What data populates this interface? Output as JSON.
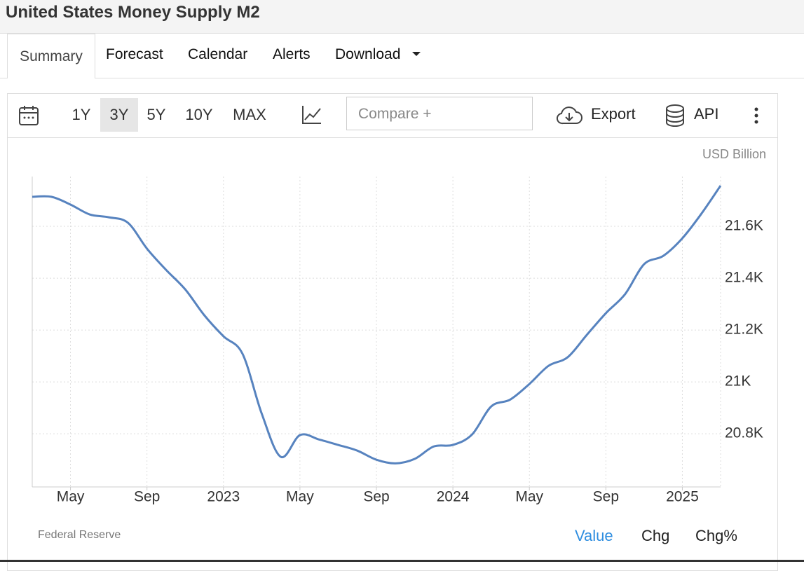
{
  "header": {
    "title": "United States Money Supply M2"
  },
  "tabs": [
    "Summary",
    "Forecast",
    "Calendar",
    "Alerts",
    "Download"
  ],
  "toolbar": {
    "ranges": [
      "1Y",
      "3Y",
      "5Y",
      "10Y",
      "MAX"
    ],
    "compare": "Compare +",
    "export": "Export",
    "api": "API"
  },
  "chart_data": {
    "type": "line",
    "unit": "USD Billion",
    "source": "Federal Reserve",
    "color": "#5783bf",
    "grid": true,
    "x": [
      "2022-03",
      "2022-04",
      "2022-05",
      "2022-06",
      "2022-07",
      "2022-08",
      "2022-09",
      "2022-10",
      "2022-11",
      "2022-12",
      "2023-01",
      "2023-02",
      "2023-03",
      "2023-04",
      "2023-05",
      "2023-06",
      "2023-07",
      "2023-08",
      "2023-09",
      "2023-10",
      "2023-11",
      "2023-12",
      "2024-01",
      "2024-02",
      "2024-03",
      "2024-04",
      "2024-05",
      "2024-06",
      "2024-07",
      "2024-08",
      "2024-09",
      "2024-10",
      "2024-11",
      "2024-12",
      "2025-01",
      "2025-02",
      "2025-03"
    ],
    "values": [
      21714,
      21714,
      21684,
      21646,
      21635,
      21614,
      21514,
      21432,
      21357,
      21257,
      21176,
      21108,
      20878,
      20711,
      20795,
      20778,
      20757,
      20735,
      20700,
      20686,
      20703,
      20751,
      20757,
      20797,
      20905,
      20932,
      20992,
      21062,
      21095,
      21181,
      21265,
      21338,
      21454,
      21486,
      21554,
      21649,
      21757
    ],
    "xlim": [
      "2022-03",
      "2025-03"
    ],
    "xticks": [
      {
        "value": "2022-05",
        "label": "May"
      },
      {
        "value": "2022-09",
        "label": "Sep"
      },
      {
        "value": "2023-01",
        "label": "2023"
      },
      {
        "value": "2023-05",
        "label": "May"
      },
      {
        "value": "2023-09",
        "label": "Sep"
      },
      {
        "value": "2024-01",
        "label": "2024"
      },
      {
        "value": "2024-05",
        "label": "May"
      },
      {
        "value": "2024-09",
        "label": "Sep"
      },
      {
        "value": "2025-01",
        "label": "2025"
      }
    ],
    "ylim": [
      20595,
      21792
    ],
    "yticks": [
      {
        "value": 20800,
        "label": "20.8K"
      },
      {
        "value": 21000,
        "label": "21K"
      },
      {
        "value": 21200,
        "label": "21.2K"
      },
      {
        "value": 21400,
        "label": "21.4K"
      },
      {
        "value": 21600,
        "label": "21.6K"
      }
    ]
  },
  "footer": {
    "views": [
      "Value",
      "Chg",
      "Chg%"
    ]
  }
}
